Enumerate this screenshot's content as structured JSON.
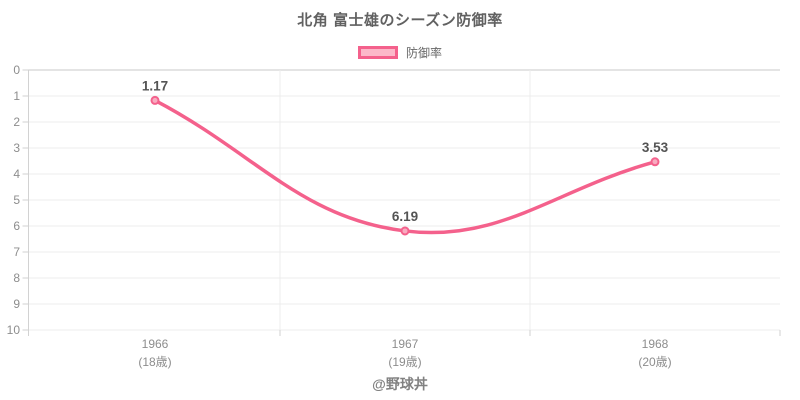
{
  "chart": {
    "title": "北角 富士雄のシーズン防御率",
    "legend_label": "防御率",
    "footer": "@野球丼"
  },
  "chart_data": {
    "type": "line",
    "title": "北角 富士雄のシーズン防御率",
    "categories": [
      "1966",
      "1967",
      "1968"
    ],
    "category_sublabels": [
      "(18歳)",
      "(19歳)",
      "(20歳)"
    ],
    "series": [
      {
        "name": "防御率",
        "values": [
          1.17,
          6.19,
          3.53
        ]
      }
    ],
    "point_labels": [
      "1.17",
      "6.19",
      "3.53"
    ],
    "ylim": [
      0,
      10
    ],
    "y_ticks": [
      0,
      1,
      2,
      3,
      4,
      5,
      6,
      7,
      8,
      9,
      10
    ],
    "y_axis_inverted": true,
    "grid": true,
    "legend_position": "top",
    "line_tension": 0.4,
    "colors": {
      "line": "#f4618c",
      "point_fill": "#f8abc0",
      "legend_fill": "#fcb8c9",
      "grid": "#ececec",
      "zero_line": "#c8c8c8",
      "axis": "#d2d2d2",
      "title": "#616161",
      "tick_label": "#8d8d8d",
      "point_label": "#545454",
      "footer": "#818181"
    }
  }
}
